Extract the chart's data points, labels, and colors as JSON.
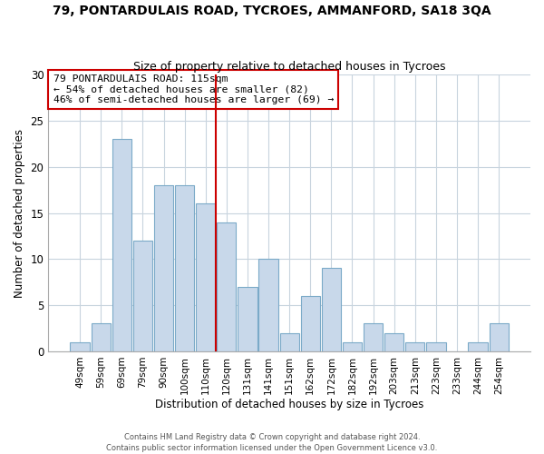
{
  "title_line1": "79, PONTARDULAIS ROAD, TYCROES, AMMANFORD, SA18 3QA",
  "title_line2": "Size of property relative to detached houses in Tycroes",
  "xlabel": "Distribution of detached houses by size in Tycroes",
  "ylabel": "Number of detached properties",
  "bar_labels": [
    "49sqm",
    "59sqm",
    "69sqm",
    "79sqm",
    "90sqm",
    "100sqm",
    "110sqm",
    "120sqm",
    "131sqm",
    "141sqm",
    "151sqm",
    "162sqm",
    "172sqm",
    "182sqm",
    "192sqm",
    "203sqm",
    "213sqm",
    "223sqm",
    "233sqm",
    "244sqm",
    "254sqm"
  ],
  "bar_values": [
    1,
    3,
    23,
    12,
    18,
    18,
    16,
    14,
    7,
    10,
    2,
    6,
    9,
    1,
    3,
    2,
    1,
    1,
    0,
    1,
    3
  ],
  "bar_color": "#c8d8ea",
  "bar_edge_color": "#7baac8",
  "ref_line_x": 6.5,
  "ref_line_color": "#cc0000",
  "ylim": [
    0,
    30
  ],
  "yticks": [
    0,
    5,
    10,
    15,
    20,
    25,
    30
  ],
  "annotation_title": "79 PONTARDULAIS ROAD: 115sqm",
  "annotation_line2": "← 54% of detached houses are smaller (82)",
  "annotation_line3": "46% of semi-detached houses are larger (69) →",
  "footer_line1": "Contains HM Land Registry data © Crown copyright and database right 2024.",
  "footer_line2": "Contains public sector information licensed under the Open Government Licence v3.0.",
  "background_color": "#ffffff",
  "grid_color": "#c8d4de"
}
